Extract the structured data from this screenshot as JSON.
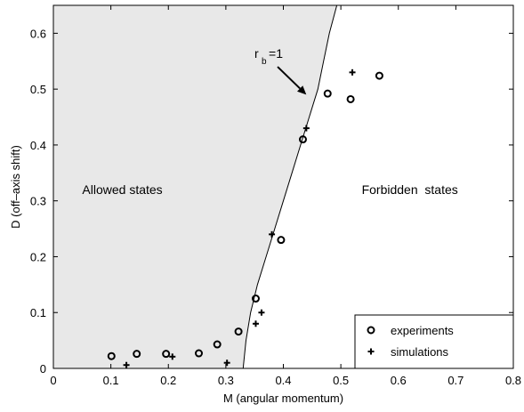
{
  "chart_data": {
    "type": "scatter",
    "xlabel": "M (angular momentum)",
    "ylabel": "D (off–axis shift)",
    "xlim": [
      0,
      0.8
    ],
    "ylim": [
      0,
      0.65
    ],
    "xticks": [
      0,
      0.1,
      0.2,
      0.3,
      0.4,
      0.5,
      0.6,
      0.7,
      0.8
    ],
    "yticks": [
      0,
      0.1,
      0.2,
      0.3,
      0.4,
      0.5,
      0.6
    ],
    "xtick_labels": [
      "0",
      "0.1",
      "0.2",
      "0.3",
      "0.4",
      "0.5",
      "0.6",
      "0.7",
      "0.8"
    ],
    "ytick_labels": [
      "0",
      "0.1",
      "0.2",
      "0.3",
      "0.4",
      "0.5",
      "0.6"
    ],
    "grid": false,
    "legend_position": "bottom-right",
    "series": [
      {
        "name": "experiments",
        "marker": "circle",
        "points": [
          [
            0.101,
            0.022
          ],
          [
            0.145,
            0.026
          ],
          [
            0.196,
            0.026
          ],
          [
            0.253,
            0.027
          ],
          [
            0.285,
            0.043
          ],
          [
            0.322,
            0.066
          ],
          [
            0.352,
            0.125
          ],
          [
            0.396,
            0.23
          ],
          [
            0.434,
            0.41
          ],
          [
            0.477,
            0.492
          ],
          [
            0.517,
            0.482
          ],
          [
            0.567,
            0.524
          ]
        ]
      },
      {
        "name": "simulations",
        "marker": "plus",
        "points": [
          [
            0.127,
            0.006
          ],
          [
            0.207,
            0.021
          ],
          [
            0.302,
            0.01
          ],
          [
            0.352,
            0.08
          ],
          [
            0.362,
            0.1
          ],
          [
            0.38,
            0.24
          ],
          [
            0.44,
            0.43
          ],
          [
            0.52,
            0.53
          ]
        ]
      }
    ],
    "boundary_curve": {
      "label_prefix": "r",
      "label_sub": "b",
      "label_suffix": "=1",
      "points": [
        [
          0.33,
          0.0
        ],
        [
          0.335,
          0.05
        ],
        [
          0.343,
          0.1
        ],
        [
          0.355,
          0.15
        ],
        [
          0.37,
          0.2
        ],
        [
          0.385,
          0.25
        ],
        [
          0.4,
          0.3
        ],
        [
          0.415,
          0.35
        ],
        [
          0.43,
          0.4
        ],
        [
          0.445,
          0.45
        ],
        [
          0.46,
          0.5
        ],
        [
          0.47,
          0.55
        ],
        [
          0.48,
          0.6
        ],
        [
          0.493,
          0.66
        ]
      ],
      "arrow_from": [
        0.39,
        0.54
      ],
      "arrow_to": [
        0.44,
        0.49
      ]
    },
    "regions": {
      "allowed": "Allowed states",
      "forbidden": "Forbidden  states"
    },
    "region_label_positions": {
      "allowed": [
        0.12,
        0.32
      ],
      "forbidden": [
        0.62,
        0.32
      ]
    },
    "colors": {
      "allowed_fill": "#e8e8e8",
      "line": "#000000",
      "background": "#ffffff"
    }
  }
}
